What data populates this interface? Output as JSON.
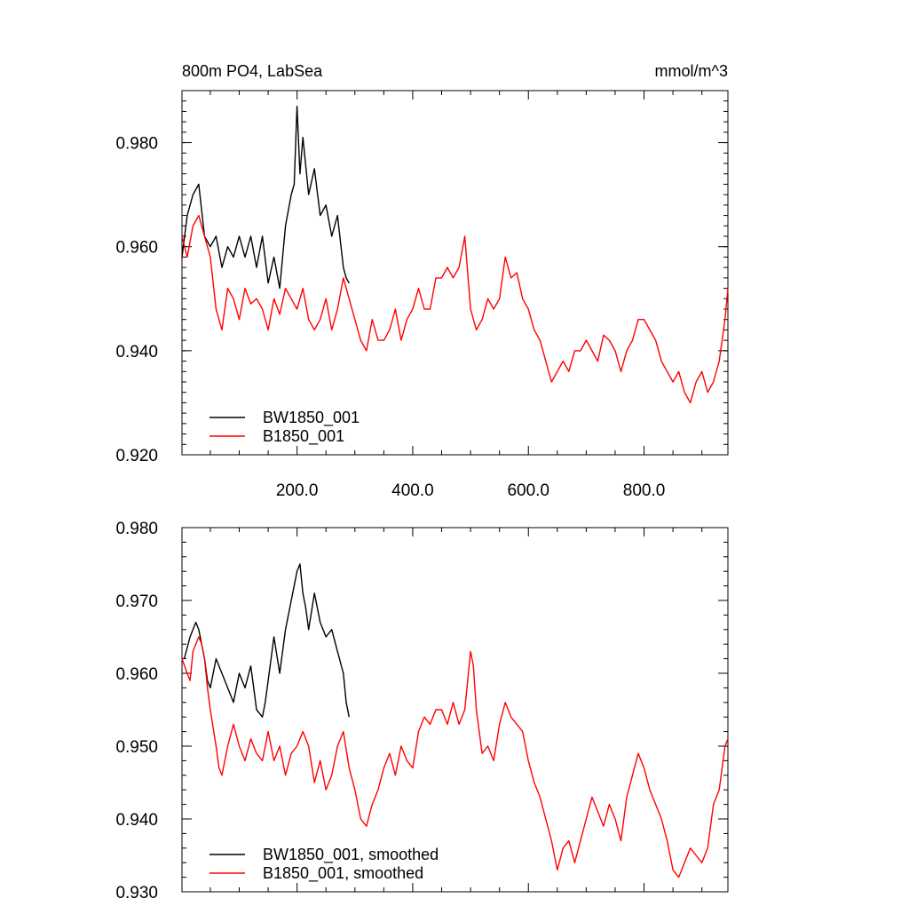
{
  "chart_data": [
    {
      "type": "line",
      "title": "800m PO4, LabSea",
      "units": "mmol/m^3",
      "xlim": [
        1,
        945
      ],
      "ylim": [
        0.92,
        0.99
      ],
      "x_ticks": [
        200,
        400,
        600,
        800
      ],
      "x_tick_labels": [
        "200.0",
        "400.0",
        "600.0",
        "800.0"
      ],
      "y_ticks": [
        0.92,
        0.94,
        0.96,
        0.98
      ],
      "y_tick_labels": [
        "0.920",
        "0.940",
        "0.960",
        "0.980"
      ],
      "grid": false,
      "legend_position": "bottom-left",
      "series": [
        {
          "name": "BW1850_001",
          "color": "#000000",
          "x": [
            1,
            10,
            20,
            30,
            40,
            50,
            60,
            70,
            80,
            90,
            100,
            110,
            120,
            130,
            140,
            150,
            160,
            170,
            180,
            190,
            195,
            200,
            205,
            210,
            220,
            230,
            240,
            250,
            260,
            270,
            280,
            285,
            290
          ],
          "y": [
            0.958,
            0.966,
            0.97,
            0.972,
            0.962,
            0.96,
            0.962,
            0.956,
            0.96,
            0.958,
            0.962,
            0.958,
            0.962,
            0.956,
            0.962,
            0.953,
            0.958,
            0.952,
            0.964,
            0.97,
            0.972,
            0.987,
            0.974,
            0.981,
            0.97,
            0.975,
            0.966,
            0.968,
            0.962,
            0.966,
            0.956,
            0.954,
            0.953
          ]
        },
        {
          "name": "B1850_001",
          "color": "#ff0000",
          "x": [
            1,
            10,
            20,
            30,
            40,
            50,
            60,
            70,
            80,
            90,
            100,
            110,
            120,
            130,
            140,
            150,
            160,
            170,
            180,
            190,
            200,
            210,
            220,
            230,
            240,
            250,
            260,
            270,
            280,
            290,
            300,
            310,
            320,
            330,
            340,
            350,
            360,
            370,
            380,
            390,
            400,
            410,
            420,
            430,
            440,
            450,
            460,
            470,
            480,
            490,
            500,
            510,
            520,
            530,
            540,
            550,
            560,
            570,
            580,
            590,
            600,
            610,
            620,
            630,
            640,
            650,
            660,
            670,
            680,
            690,
            700,
            710,
            720,
            730,
            740,
            750,
            760,
            770,
            780,
            790,
            800,
            810,
            820,
            830,
            840,
            850,
            860,
            870,
            880,
            890,
            900,
            910,
            920,
            930,
            940,
            945
          ],
          "y": [
            0.962,
            0.958,
            0.964,
            0.966,
            0.962,
            0.958,
            0.948,
            0.944,
            0.952,
            0.95,
            0.946,
            0.952,
            0.949,
            0.95,
            0.948,
            0.944,
            0.95,
            0.947,
            0.952,
            0.95,
            0.948,
            0.952,
            0.946,
            0.944,
            0.946,
            0.95,
            0.944,
            0.948,
            0.954,
            0.95,
            0.946,
            0.942,
            0.94,
            0.946,
            0.942,
            0.942,
            0.944,
            0.948,
            0.942,
            0.946,
            0.948,
            0.952,
            0.948,
            0.948,
            0.954,
            0.954,
            0.956,
            0.954,
            0.956,
            0.962,
            0.948,
            0.944,
            0.946,
            0.95,
            0.948,
            0.95,
            0.958,
            0.954,
            0.955,
            0.95,
            0.948,
            0.944,
            0.942,
            0.938,
            0.934,
            0.936,
            0.938,
            0.936,
            0.94,
            0.94,
            0.942,
            0.94,
            0.938,
            0.943,
            0.942,
            0.94,
            0.936,
            0.94,
            0.942,
            0.946,
            0.946,
            0.944,
            0.942,
            0.938,
            0.936,
            0.934,
            0.936,
            0.932,
            0.93,
            0.934,
            0.936,
            0.932,
            0.934,
            0.938,
            0.946,
            0.952
          ]
        }
      ]
    },
    {
      "type": "line",
      "xlim": [
        1,
        945
      ],
      "ylim": [
        0.93,
        0.98
      ],
      "y_ticks": [
        0.93,
        0.94,
        0.95,
        0.96,
        0.97,
        0.98
      ],
      "y_tick_labels": [
        "0.930",
        "0.940",
        "0.950",
        "0.960",
        "0.970",
        "0.980"
      ],
      "grid": false,
      "legend_position": "bottom-left",
      "series": [
        {
          "name": "BW1850_001, smoothed",
          "color": "#000000",
          "x": [
            5,
            15,
            25,
            30,
            40,
            45,
            50,
            60,
            70,
            80,
            90,
            100,
            110,
            120,
            125,
            130,
            140,
            145,
            150,
            160,
            170,
            180,
            190,
            200,
            205,
            210,
            215,
            220,
            230,
            240,
            250,
            260,
            270,
            280,
            285,
            290
          ],
          "y": [
            0.962,
            0.965,
            0.967,
            0.966,
            0.962,
            0.959,
            0.958,
            0.962,
            0.96,
            0.958,
            0.956,
            0.96,
            0.958,
            0.961,
            0.958,
            0.955,
            0.954,
            0.956,
            0.959,
            0.965,
            0.96,
            0.966,
            0.97,
            0.974,
            0.975,
            0.971,
            0.969,
            0.966,
            0.971,
            0.967,
            0.965,
            0.966,
            0.963,
            0.96,
            0.956,
            0.954
          ]
        },
        {
          "name": "B1850_001, smoothed",
          "color": "#ff0000",
          "x": [
            1,
            10,
            15,
            20,
            30,
            35,
            40,
            45,
            50,
            60,
            65,
            70,
            80,
            90,
            100,
            110,
            120,
            130,
            140,
            150,
            160,
            170,
            180,
            190,
            200,
            210,
            220,
            230,
            240,
            250,
            260,
            270,
            280,
            290,
            300,
            310,
            320,
            330,
            340,
            350,
            360,
            370,
            380,
            390,
            400,
            410,
            420,
            430,
            440,
            450,
            460,
            470,
            480,
            490,
            500,
            505,
            510,
            520,
            530,
            540,
            550,
            560,
            570,
            580,
            590,
            600,
            610,
            620,
            630,
            640,
            650,
            660,
            670,
            680,
            690,
            700,
            710,
            720,
            730,
            740,
            750,
            760,
            770,
            780,
            790,
            800,
            810,
            820,
            830,
            840,
            850,
            860,
            870,
            880,
            890,
            900,
            910,
            920,
            930,
            940,
            945
          ],
          "y": [
            0.962,
            0.96,
            0.959,
            0.963,
            0.965,
            0.964,
            0.962,
            0.958,
            0.955,
            0.95,
            0.947,
            0.946,
            0.95,
            0.953,
            0.95,
            0.948,
            0.951,
            0.949,
            0.948,
            0.952,
            0.948,
            0.95,
            0.946,
            0.949,
            0.95,
            0.952,
            0.95,
            0.945,
            0.948,
            0.944,
            0.946,
            0.95,
            0.952,
            0.947,
            0.944,
            0.94,
            0.939,
            0.942,
            0.944,
            0.947,
            0.949,
            0.946,
            0.95,
            0.948,
            0.947,
            0.952,
            0.954,
            0.953,
            0.955,
            0.955,
            0.953,
            0.956,
            0.953,
            0.955,
            0.963,
            0.961,
            0.955,
            0.949,
            0.95,
            0.948,
            0.953,
            0.956,
            0.954,
            0.953,
            0.952,
            0.948,
            0.945,
            0.943,
            0.94,
            0.937,
            0.933,
            0.936,
            0.937,
            0.934,
            0.937,
            0.94,
            0.943,
            0.941,
            0.939,
            0.942,
            0.94,
            0.937,
            0.943,
            0.946,
            0.949,
            0.947,
            0.944,
            0.942,
            0.94,
            0.937,
            0.933,
            0.932,
            0.934,
            0.936,
            0.935,
            0.934,
            0.936,
            0.942,
            0.944,
            0.95,
            0.951
          ]
        }
      ]
    }
  ]
}
